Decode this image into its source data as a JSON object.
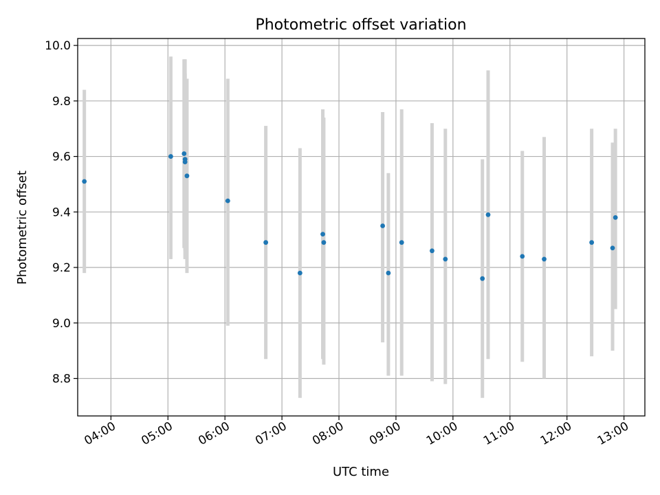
{
  "chart_data": {
    "type": "scatter",
    "title": "Photometric offset variation",
    "xlabel": "UTC time",
    "ylabel": "Photometric offset",
    "x_unit": "UTC time (HH:MM)",
    "xlim": [
      "03:25",
      "13:22"
    ],
    "ylim": [
      8.665,
      10.025
    ],
    "x_ticks": [
      "04:00",
      "05:00",
      "06:00",
      "07:00",
      "08:00",
      "09:00",
      "10:00",
      "11:00",
      "12:00",
      "13:00"
    ],
    "y_ticks": [
      8.8,
      9.0,
      9.2,
      9.4,
      9.6,
      9.8,
      10.0
    ],
    "y_tick_labels": [
      "8.8",
      "9.0",
      "9.2",
      "9.4",
      "9.6",
      "9.8",
      "10.0"
    ],
    "grid": true,
    "colors": {
      "point": "#1f77b4",
      "errorbar": "#d3d3d3",
      "grid": "#b0b0b0"
    },
    "series": [
      {
        "points": [
          {
            "x": "03:32",
            "y": 9.51,
            "ylow": 9.18,
            "yhigh": 9.84
          },
          {
            "x": "05:03",
            "y": 9.6,
            "ylow": 9.23,
            "yhigh": 9.96
          },
          {
            "x": "05:17",
            "y": 9.61,
            "ylow": 9.27,
            "yhigh": 9.95
          },
          {
            "x": "05:18",
            "y": 9.59,
            "ylow": 9.23,
            "yhigh": 9.95
          },
          {
            "x": "05:18",
            "y": 9.58,
            "ylow": 9.26,
            "yhigh": 9.9
          },
          {
            "x": "05:20",
            "y": 9.53,
            "ylow": 9.18,
            "yhigh": 9.88
          },
          {
            "x": "06:03",
            "y": 9.44,
            "ylow": 8.99,
            "yhigh": 9.88
          },
          {
            "x": "06:43",
            "y": 9.29,
            "ylow": 8.87,
            "yhigh": 9.71
          },
          {
            "x": "07:19",
            "y": 9.18,
            "ylow": 8.73,
            "yhigh": 9.63
          },
          {
            "x": "07:43",
            "y": 9.32,
            "ylow": 8.87,
            "yhigh": 9.77
          },
          {
            "x": "07:44",
            "y": 9.29,
            "ylow": 8.85,
            "yhigh": 9.74
          },
          {
            "x": "08:46",
            "y": 9.35,
            "ylow": 8.93,
            "yhigh": 9.76
          },
          {
            "x": "08:52",
            "y": 9.18,
            "ylow": 8.81,
            "yhigh": 9.54
          },
          {
            "x": "09:06",
            "y": 9.29,
            "ylow": 8.81,
            "yhigh": 9.77
          },
          {
            "x": "09:38",
            "y": 9.26,
            "ylow": 8.79,
            "yhigh": 9.72
          },
          {
            "x": "09:52",
            "y": 9.23,
            "ylow": 8.78,
            "yhigh": 9.7
          },
          {
            "x": "10:31",
            "y": 9.16,
            "ylow": 8.73,
            "yhigh": 9.59
          },
          {
            "x": "10:37",
            "y": 9.39,
            "ylow": 8.87,
            "yhigh": 9.91
          },
          {
            "x": "11:13",
            "y": 9.24,
            "ylow": 8.86,
            "yhigh": 9.62
          },
          {
            "x": "11:36",
            "y": 9.23,
            "ylow": 8.8,
            "yhigh": 9.67
          },
          {
            "x": "12:26",
            "y": 9.29,
            "ylow": 8.88,
            "yhigh": 9.7
          },
          {
            "x": "12:48",
            "y": 9.27,
            "ylow": 8.9,
            "yhigh": 9.65
          },
          {
            "x": "12:51",
            "y": 9.38,
            "ylow": 9.05,
            "yhigh": 9.7
          }
        ]
      }
    ]
  }
}
